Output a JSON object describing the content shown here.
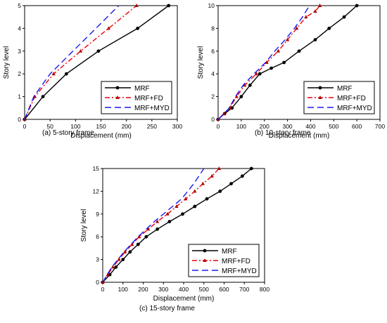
{
  "colors": {
    "mrf": "#000000",
    "fd": "#e8000b",
    "myd": "#1a1aee",
    "fd_marker": "#b00000"
  },
  "chart_data": [
    {
      "type": "line",
      "caption": "(a) 5-story frame",
      "xlabel": "Displacement (mm)",
      "ylabel": "Story level",
      "xlim": [
        0,
        300
      ],
      "ylim": [
        0,
        5
      ],
      "xticks": [
        0,
        50,
        100,
        150,
        200,
        250,
        300
      ],
      "yticks": [
        0,
        1,
        2,
        3,
        4,
        5
      ],
      "grid": false,
      "legend_position": "bottom-right",
      "series": [
        {
          "name": "MRF",
          "style": "solid-circle",
          "x": [
            0,
            36,
            82,
            145,
            222,
            283
          ],
          "y": [
            0,
            1,
            2,
            3,
            4,
            5
          ]
        },
        {
          "name": "MRF+FD",
          "style": "dashdot-triangle",
          "x": [
            0,
            20,
            57,
            110,
            165,
            220
          ],
          "y": [
            0,
            1,
            2,
            3,
            4,
            5
          ]
        },
        {
          "name": "MRF+MYD",
          "style": "dashed",
          "x": [
            0,
            18,
            50,
            95,
            140,
            185
          ],
          "y": [
            0,
            1,
            2,
            3,
            4,
            5
          ]
        }
      ]
    },
    {
      "type": "line",
      "caption": "(b) 10-story frame",
      "xlabel": "Displacement (mm)",
      "ylabel": "Story level",
      "xlim": [
        0,
        700
      ],
      "ylim": [
        0,
        10
      ],
      "xticks": [
        0,
        100,
        200,
        300,
        400,
        500,
        600,
        700
      ],
      "yticks": [
        0,
        2,
        4,
        6,
        8,
        10
      ],
      "grid": false,
      "legend_position": "bottom-right",
      "series": [
        {
          "name": "MRF",
          "style": "solid-circle",
          "x": [
            0,
            28,
            60,
            100,
            138,
            180,
            230,
            285,
            350,
            420,
            480,
            545,
            600
          ],
          "y": [
            0,
            0.5,
            1,
            2,
            3,
            4,
            4.5,
            5,
            6,
            7,
            8,
            9,
            10
          ]
        },
        {
          "name": "MRF+FD",
          "style": "dashdot-triangle",
          "x": [
            0,
            25,
            50,
            80,
            115,
            165,
            210,
            260,
            300,
            340,
            380,
            420,
            440
          ],
          "y": [
            0,
            0.5,
            1,
            2,
            3,
            4,
            5,
            6,
            7,
            8,
            9,
            9.5,
            10
          ]
        },
        {
          "name": "MRF+MYD",
          "style": "dashed",
          "x": [
            0,
            25,
            48,
            75,
            108,
            155,
            205,
            245,
            290,
            330,
            365,
            395
          ],
          "y": [
            0,
            0.5,
            1,
            2,
            3,
            4,
            5,
            6,
            7,
            8,
            9,
            10
          ]
        }
      ]
    },
    {
      "type": "line",
      "caption": "(c) 15-story frame",
      "xlabel": "Displacement (mm)",
      "ylabel": "Story level",
      "xlim": [
        0,
        800
      ],
      "ylim": [
        0,
        15
      ],
      "xticks": [
        0,
        100,
        200,
        300,
        400,
        500,
        600,
        700,
        800
      ],
      "yticks": [
        0,
        3,
        6,
        9,
        12,
        15
      ],
      "grid": false,
      "legend_position": "bottom-right",
      "series": [
        {
          "name": "MRF",
          "style": "solid-circle",
          "x": [
            0,
            35,
            65,
            100,
            135,
            175,
            215,
            270,
            330,
            395,
            455,
            515,
            580,
            635,
            690,
            735
          ],
          "y": [
            0,
            1,
            2,
            3,
            4,
            5,
            6,
            7,
            8,
            9,
            10,
            11,
            12,
            13,
            14,
            15
          ]
        },
        {
          "name": "MRF+FD",
          "style": "dashdot-triangle",
          "x": [
            0,
            25,
            50,
            80,
            110,
            145,
            180,
            225,
            270,
            320,
            365,
            410,
            455,
            495,
            540,
            575
          ],
          "y": [
            0,
            1,
            2,
            3,
            4,
            5,
            6,
            7,
            8,
            9,
            10,
            11,
            12,
            13,
            14,
            15
          ]
        },
        {
          "name": "MRF+MYD",
          "style": "dashed",
          "x": [
            0,
            22,
            45,
            75,
            105,
            140,
            175,
            215,
            255,
            300,
            345,
            390,
            420,
            450,
            475,
            500
          ],
          "y": [
            0,
            1,
            2,
            3,
            4,
            5,
            6,
            7,
            8,
            9,
            10,
            11,
            12,
            13,
            14,
            15
          ]
        }
      ]
    }
  ]
}
